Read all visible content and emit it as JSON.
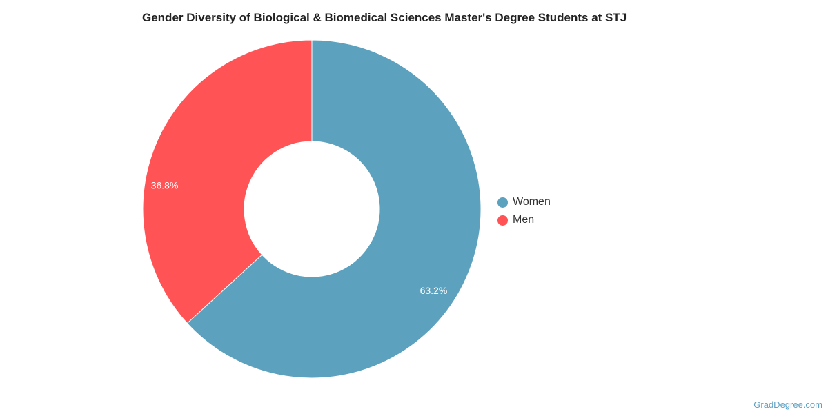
{
  "chart_data": {
    "type": "pie",
    "donut": true,
    "title": "Gender Diversity of Biological & Biomedical Sciences Master's Degree Students at STJ",
    "legend_position": "right",
    "slices": [
      {
        "name": "Women",
        "value": 63.2,
        "label": "63.2%",
        "color": "#5ca1be"
      },
      {
        "name": "Men",
        "value": 36.8,
        "label": "36.8%",
        "color": "#ff5355"
      }
    ]
  },
  "credit": "GradDegree.com"
}
